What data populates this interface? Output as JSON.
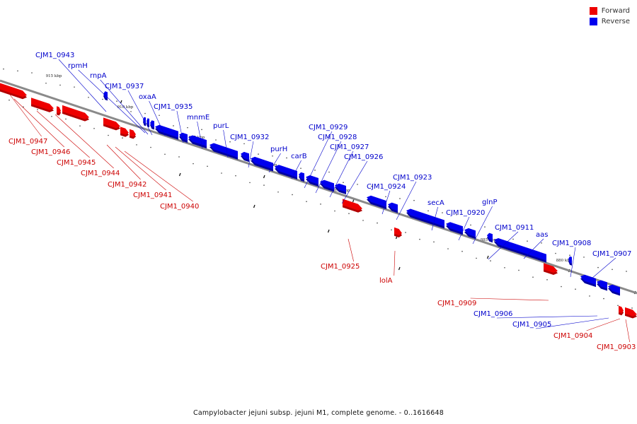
{
  "legend": {
    "items": [
      {
        "label": "Forward",
        "color": "#ee0000"
      },
      {
        "label": "Reverse",
        "color": "#0000ee"
      }
    ]
  },
  "caption": "Campylobacter jejuni subsp. jejuni M1, complete genome. - 0..1616648",
  "colors": {
    "forward": "#ee0000",
    "forward_dark": "#b30000",
    "reverse": "#0000ee",
    "reverse_dark": "#0000a0",
    "backbone": "#8a8a8a",
    "forward_label": "#cc0000",
    "reverse_label": "#0000cc"
  },
  "scale_labels": [
    "915 kbp",
    "910 kbp",
    "905 kbp",
    "900 kbp",
    "895 kbp",
    "890 kbp",
    "885 kbp",
    "880 kbp"
  ],
  "genes": [
    {
      "name": "CJM1_0947",
      "strand": "forward"
    },
    {
      "name": "CJM1_0946",
      "strand": "forward"
    },
    {
      "name": "CJM1_0945",
      "strand": "forward"
    },
    {
      "name": "CJM1_0944",
      "strand": "forward"
    },
    {
      "name": "CJM1_0943",
      "strand": "reverse"
    },
    {
      "name": "CJM1_0942",
      "strand": "forward"
    },
    {
      "name": "CJM1_0941",
      "strand": "forward"
    },
    {
      "name": "CJM1_0940",
      "strand": "forward"
    },
    {
      "name": "rpmH",
      "strand": "reverse"
    },
    {
      "name": "rnpA",
      "strand": "reverse"
    },
    {
      "name": "CJM1_0937",
      "strand": "reverse"
    },
    {
      "name": "oxaA",
      "strand": "reverse"
    },
    {
      "name": "CJM1_0935",
      "strand": "reverse"
    },
    {
      "name": "mnmE",
      "strand": "reverse"
    },
    {
      "name": "purL",
      "strand": "reverse"
    },
    {
      "name": "CJM1_0932",
      "strand": "reverse"
    },
    {
      "name": "purH",
      "strand": "reverse"
    },
    {
      "name": "carB",
      "strand": "reverse"
    },
    {
      "name": "CJM1_0929",
      "strand": "reverse"
    },
    {
      "name": "CJM1_0928",
      "strand": "reverse"
    },
    {
      "name": "CJM1_0927",
      "strand": "reverse"
    },
    {
      "name": "CJM1_0926",
      "strand": "reverse"
    },
    {
      "name": "CJM1_0925",
      "strand": "forward"
    },
    {
      "name": "CJM1_0924",
      "strand": "reverse"
    },
    {
      "name": "CJM1_0923",
      "strand": "reverse"
    },
    {
      "name": "lolA",
      "strand": "forward"
    },
    {
      "name": "secA",
      "strand": "reverse"
    },
    {
      "name": "CJM1_0920",
      "strand": "reverse"
    },
    {
      "name": "glnP",
      "strand": "reverse"
    },
    {
      "name": "CJM1_0911",
      "strand": "reverse"
    },
    {
      "name": "aas",
      "strand": "reverse"
    },
    {
      "name": "CJM1_0909",
      "strand": "forward"
    },
    {
      "name": "CJM1_0908",
      "strand": "reverse"
    },
    {
      "name": "CJM1_0907",
      "strand": "reverse"
    },
    {
      "name": "CJM1_0906",
      "strand": "reverse"
    },
    {
      "name": "CJM1_0905",
      "strand": "reverse"
    },
    {
      "name": "CJM1_0904",
      "strand": "forward"
    },
    {
      "name": "CJM1_0903",
      "strand": "forward"
    }
  ]
}
